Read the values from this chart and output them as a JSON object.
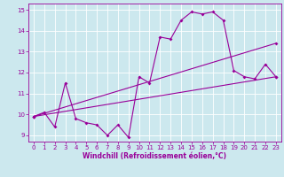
{
  "xlabel": "Windchill (Refroidissement éolien,°C)",
  "bg_color": "#cce8ee",
  "grid_color": "#ffffff",
  "line_color": "#990099",
  "xlim": [
    -0.5,
    23.5
  ],
  "ylim": [
    8.7,
    15.3
  ],
  "xticks": [
    0,
    1,
    2,
    3,
    4,
    5,
    6,
    7,
    8,
    9,
    10,
    11,
    12,
    13,
    14,
    15,
    16,
    17,
    18,
    19,
    20,
    21,
    22,
    23
  ],
  "yticks": [
    9,
    10,
    11,
    12,
    13,
    14,
    15
  ],
  "line1_x": [
    0,
    1,
    2,
    3,
    4,
    5,
    6,
    7,
    8,
    9,
    10,
    11,
    12,
    13,
    14,
    15,
    16,
    17,
    18,
    19,
    20,
    21,
    22,
    23
  ],
  "line1_y": [
    9.9,
    10.1,
    9.4,
    11.5,
    9.8,
    9.6,
    9.5,
    9.0,
    9.5,
    8.9,
    11.8,
    11.5,
    13.7,
    13.6,
    14.5,
    14.9,
    14.8,
    14.9,
    14.5,
    12.1,
    11.8,
    11.7,
    12.4,
    11.8
  ],
  "line2_x": [
    0,
    23
  ],
  "line2_y": [
    9.9,
    13.4
  ],
  "line3_x": [
    0,
    23
  ],
  "line3_y": [
    9.9,
    11.8
  ],
  "marker_size": 2.0,
  "line_width": 0.8,
  "tick_fontsize": 5.0,
  "xlabel_fontsize": 5.5
}
